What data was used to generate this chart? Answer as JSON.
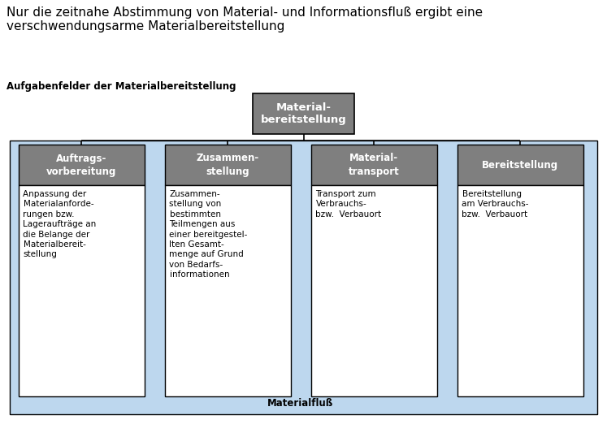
{
  "title": "Nur die zeitnahe Abstimmung von Material- und Informationsfluß ergibt eine\nverschwendungsarme Materialbereitstellung",
  "subtitle": "Aufgabenfelder der Materialbereitstellung",
  "root_label": "Material-\nbereitstellung",
  "children": [
    {
      "header": "Auftrags-\nvorbereitung",
      "body": "Anpassung der\nMaterialanforde-\nrungen bzw.\nLageraufträge an\ndie Belange der\nMaterialbereit-\nstellung"
    },
    {
      "header": "Zusammen-\nstellung",
      "body": "Zusammen-\nstellung von\nbestimmten\nTeilmengen aus\neiner bereitgestel-\nlten Gesamt-\nmenge auf Grund\nvon Bedarfs-\ninformationen"
    },
    {
      "header": "Material-\ntransport",
      "body": "Transport zum\nVerbrauchs-\nbzw.  Verbauort"
    },
    {
      "header": "Bereitstellung",
      "body": "Bereitstellung\nam Verbrauchs-\nbzw.  Verbauort"
    }
  ],
  "materialfluss_label": "Materialfluß",
  "colors": {
    "root_box_bg": "#7f7f7f",
    "root_box_text": "#ffffff",
    "header_box_bg": "#7f7f7f",
    "header_box_text": "#ffffff",
    "body_box_bg": "#ffffff",
    "body_text": "#000000",
    "light_blue_bg": "#bdd7ee",
    "connector_line": "#000000",
    "title_text": "#000000",
    "subtitle_text": "#000000",
    "materialfluss_text": "#000000",
    "border_color": "#000000"
  },
  "figsize": [
    7.47,
    5.38
  ],
  "dpi": 100
}
